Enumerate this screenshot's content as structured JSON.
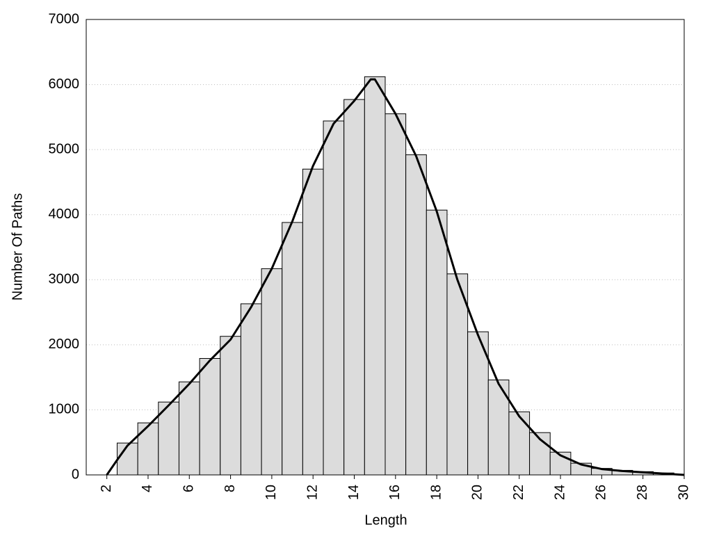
{
  "chart_data": {
    "type": "histogram",
    "x_label": "Length",
    "y_label": "Number Of Paths",
    "bins": [
      2.5,
      3.5,
      4.5,
      5.5,
      6.5,
      7.5,
      8.5,
      9.5,
      10.5,
      11.5,
      12.5,
      13.5,
      14.5,
      15.5,
      16.5,
      17.5,
      18.5,
      19.5,
      20.5,
      21.5,
      22.5,
      23.5,
      24.5,
      25.5,
      26.5,
      27.5,
      28.5,
      29.5
    ],
    "counts": [
      490,
      800,
      1120,
      1430,
      1790,
      2130,
      2630,
      3170,
      3880,
      4700,
      5440,
      5770,
      6120,
      5550,
      4920,
      4070,
      3090,
      2200,
      1460,
      970,
      650,
      350,
      180,
      100,
      70,
      50,
      30
    ],
    "color": "#dcdcdc",
    "curve": {
      "color": "#000000",
      "x": [
        2,
        2.5,
        3,
        4,
        5,
        6,
        7,
        8,
        9,
        10,
        11,
        12,
        13,
        14,
        14.8,
        15,
        16,
        17,
        18,
        19,
        20,
        21,
        22,
        23,
        24,
        25,
        26,
        27,
        28,
        29,
        30
      ],
      "values": [
        0,
        230,
        450,
        750,
        1070,
        1400,
        1760,
        2080,
        2580,
        3170,
        3900,
        4750,
        5400,
        5750,
        6080,
        6080,
        5550,
        4900,
        4050,
        3000,
        2150,
        1400,
        900,
        550,
        300,
        160,
        90,
        60,
        40,
        20,
        0
      ]
    },
    "xlim": [
      1,
      30
    ],
    "xticks": [
      2,
      4,
      6,
      8,
      10,
      12,
      14,
      16,
      18,
      20,
      22,
      24,
      26,
      28,
      30
    ],
    "ylim": [
      0,
      7000
    ],
    "yticks": [
      0,
      1000,
      2000,
      3000,
      4000,
      5000,
      6000,
      7000
    ],
    "grid": true
  }
}
